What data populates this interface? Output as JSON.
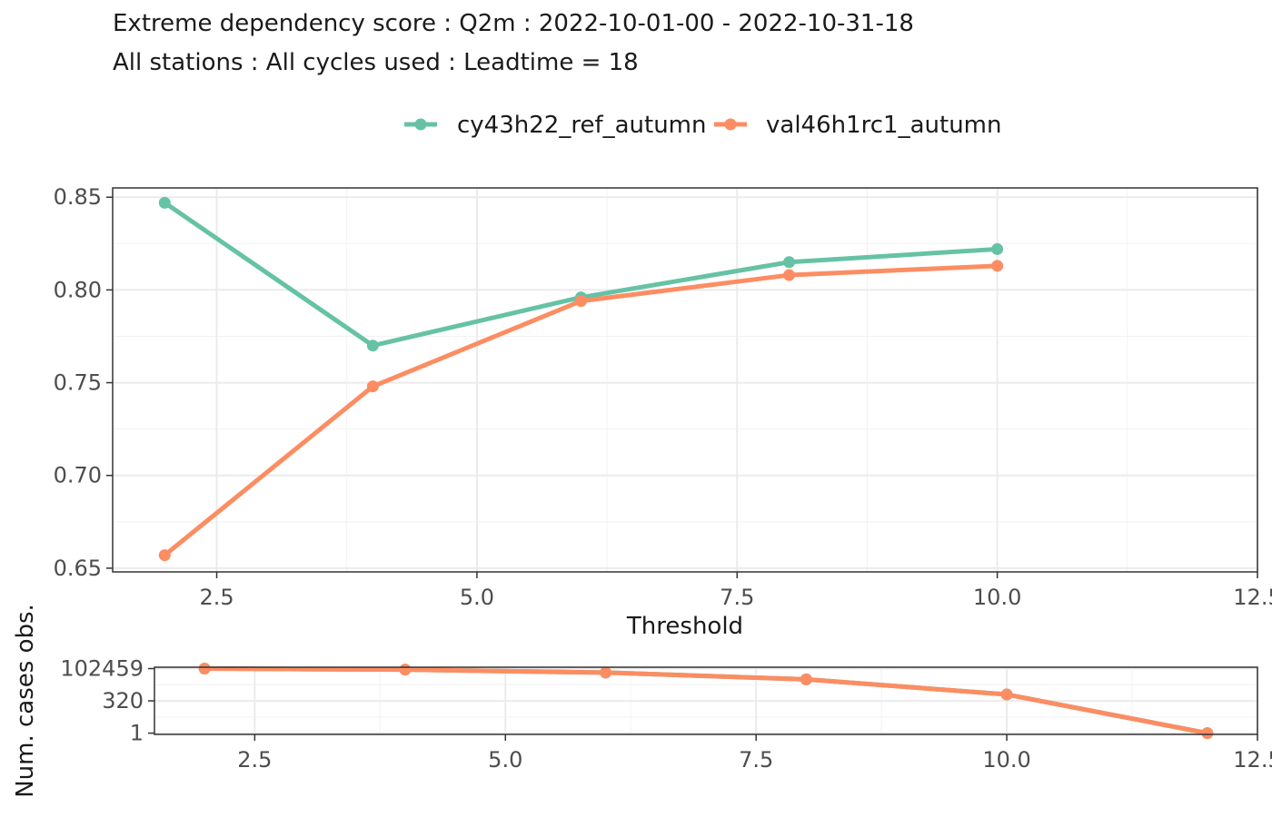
{
  "title_line1": "Extreme dependency score : Q2m : 2022-10-01-00 - 2022-10-31-18",
  "title_line2": "All stations : All cycles used : Leadtime = 18",
  "legend": [
    {
      "label": "cy43h22_ref_autumn",
      "color": "#66c2a5"
    },
    {
      "label": "val46h1rc1_autumn",
      "color": "#fc8d62"
    }
  ],
  "colors": {
    "series1": "#66c2a5",
    "series2": "#fc8d62"
  },
  "chart_data": [
    {
      "type": "line",
      "xlabel": "Threshold",
      "ylabel": "",
      "xlim": [
        1.5,
        12.5
      ],
      "ylim": [
        0.648,
        0.855
      ],
      "x_ticks": [
        2.5,
        5.0,
        7.5,
        10.0,
        12.5
      ],
      "x_tick_labels": [
        "2.5",
        "5.0",
        "7.5",
        "10.0",
        "12.5"
      ],
      "y_ticks": [
        0.65,
        0.7,
        0.75,
        0.8,
        0.85
      ],
      "y_tick_labels": [
        "0.65",
        "0.70",
        "0.75",
        "0.80",
        "0.85"
      ],
      "grid": true,
      "legend_position": "top",
      "series": [
        {
          "name": "cy43h22_ref_autumn",
          "color": "#66c2a5",
          "x": [
            2,
            4,
            6,
            8,
            10
          ],
          "y": [
            0.847,
            0.77,
            0.796,
            0.815,
            0.822
          ]
        },
        {
          "name": "val46h1rc1_autumn",
          "color": "#fc8d62",
          "x": [
            2,
            4,
            6,
            8,
            10
          ],
          "y": [
            0.657,
            0.748,
            0.794,
            0.808,
            0.813
          ]
        }
      ]
    },
    {
      "type": "line",
      "xlabel": "",
      "ylabel": "Num. cases obs.",
      "xlim": [
        1.5,
        12.5
      ],
      "y_scale": "log",
      "ylim": [
        0.8,
        131000
      ],
      "x_ticks": [
        2.5,
        5.0,
        7.5,
        10.0,
        12.5
      ],
      "x_tick_labels": [
        "2.5",
        "5.0",
        "7.5",
        "10.0",
        "12.5"
      ],
      "y_ticks": [
        1,
        320,
        102459
      ],
      "y_tick_labels": [
        "1",
        "320",
        "102459"
      ],
      "grid": true,
      "series": [
        {
          "name": "cy43h22_ref_autumn",
          "color": "#66c2a5",
          "x": [
            2,
            4,
            6,
            8,
            10,
            12
          ],
          "y": [
            102459,
            85000,
            50000,
            15000,
            1000,
            1
          ]
        },
        {
          "name": "val46h1rc1_autumn",
          "color": "#fc8d62",
          "x": [
            2,
            4,
            6,
            8,
            10,
            12
          ],
          "y": [
            102459,
            85000,
            50000,
            15000,
            1000,
            1
          ]
        }
      ]
    }
  ]
}
